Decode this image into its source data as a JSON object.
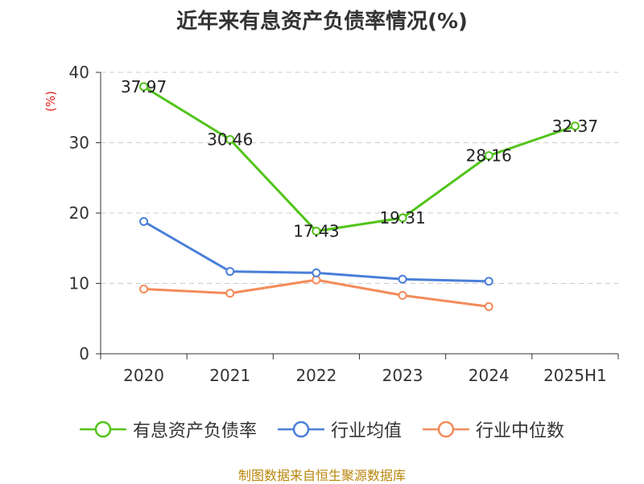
{
  "title": "近年来有息资产负债率情况(%)",
  "footer": "制图数据来自恒生聚源数据库",
  "chart_data": {
    "type": "line",
    "title": "近年来有息资产负债率情况(%)",
    "ylabel": "(%)",
    "xlabel": "",
    "categories": [
      "2020",
      "2021",
      "2022",
      "2023",
      "2024",
      "2025H1"
    ],
    "ylim": [
      0,
      40
    ],
    "yticks": [
      0,
      10,
      20,
      30,
      40
    ],
    "grid": true,
    "legend_position": "bottom",
    "series": [
      {
        "name": "有息资产负债率",
        "color": "#52c41a",
        "values": [
          37.97,
          30.46,
          17.43,
          19.31,
          28.16,
          32.37
        ],
        "labels": [
          "37.97",
          "30.46",
          "17.43",
          "19.31",
          "28.16",
          "32.37"
        ]
      },
      {
        "name": "行业均值",
        "color": "#4a7fd8",
        "values": [
          18.8,
          11.7,
          11.5,
          10.6,
          10.3,
          null
        ]
      },
      {
        "name": "行业中位数",
        "color": "#f28b5a",
        "values": [
          9.2,
          8.6,
          10.5,
          8.3,
          6.7,
          null
        ]
      }
    ]
  }
}
